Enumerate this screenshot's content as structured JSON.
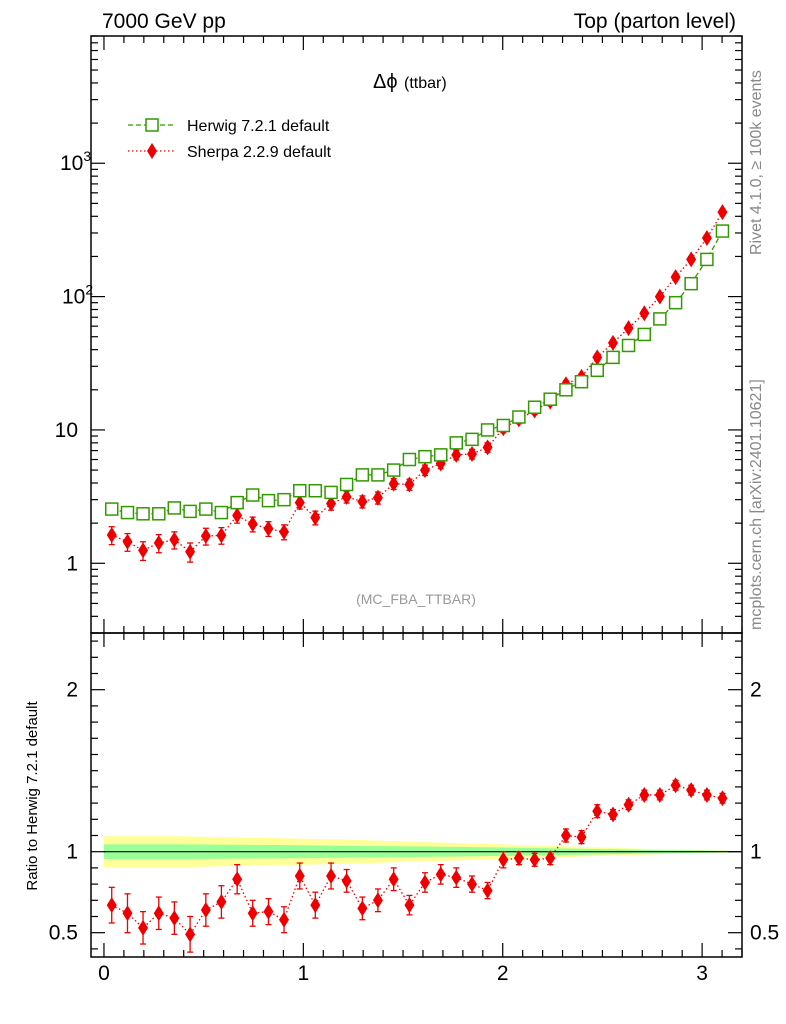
{
  "header": {
    "left": "7000 GeV pp",
    "right": "Top (parton level)"
  },
  "side_labels": {
    "rivet": "Rivet 4.1.0, ≥ 100k events",
    "mcplots": "mcplots.cern.ch [arXiv:2401.10621]"
  },
  "watermark": "(MC_FBA_TTBAR)",
  "colors": {
    "herwig": "#339900",
    "sherpa": "#ee0000",
    "band_inner": "#99ff99",
    "band_outer": "#ffff99"
  },
  "chart_data": [
    {
      "type": "scatter",
      "panel": "main",
      "title": "Δϕ (ttbar)",
      "title_main": "Δϕ",
      "title_sub": "(ttbar)",
      "xlabel": "",
      "ylabel": "",
      "yscale": "log",
      "xlim": [
        -0.065,
        3.2
      ],
      "ylim": [
        0.3,
        9000
      ],
      "y_ticks": [
        {
          "value": 1,
          "label": "1"
        },
        {
          "value": 10,
          "label": "10"
        },
        {
          "value": 100,
          "label": "10",
          "exp": "2"
        },
        {
          "value": 1000,
          "label": "10",
          "exp": "3"
        }
      ],
      "x": [
        0.039,
        0.118,
        0.196,
        0.275,
        0.353,
        0.432,
        0.511,
        0.589,
        0.668,
        0.746,
        0.825,
        0.903,
        0.982,
        1.06,
        1.139,
        1.217,
        1.296,
        1.374,
        1.453,
        1.532,
        1.61,
        1.689,
        1.767,
        1.846,
        1.924,
        2.003,
        2.081,
        2.16,
        2.238,
        2.317,
        2.395,
        2.474,
        2.553,
        2.631,
        2.71,
        2.788,
        2.867,
        2.945,
        3.024,
        3.102
      ],
      "series": [
        {
          "name": "Herwig 7.2.1 default",
          "style": "open-square-dashed",
          "values": [
            2.55,
            2.4,
            2.35,
            2.35,
            2.6,
            2.45,
            2.55,
            2.4,
            2.85,
            3.25,
            2.95,
            3.0,
            3.5,
            3.5,
            3.4,
            3.9,
            4.6,
            4.6,
            5.0,
            6.0,
            6.3,
            6.5,
            8.0,
            8.5,
            10.0,
            10.8,
            12.5,
            14.8,
            17.0,
            20.0,
            23.0,
            28.0,
            35.0,
            43.0,
            52.0,
            68.0,
            90.0,
            125.0,
            190.0,
            310.0
          ],
          "errors": [
            0.12,
            0.11,
            0.11,
            0.11,
            0.12,
            0.11,
            0.12,
            0.11,
            0.13,
            0.14,
            0.13,
            0.13,
            0.15,
            0.15,
            0.14,
            0.16,
            0.18,
            0.18,
            0.19,
            0.22,
            0.23,
            0.23,
            0.27,
            0.28,
            0.31,
            0.33,
            0.37,
            0.42,
            0.46,
            0.52,
            0.58,
            0.67,
            0.8,
            0.95,
            1.1,
            1.4,
            1.8,
            2.4,
            3.5,
            5.5
          ]
        },
        {
          "name": "Sherpa 2.2.9 default",
          "style": "filled-diamond-dotted",
          "values": [
            1.63,
            1.45,
            1.25,
            1.42,
            1.5,
            1.22,
            1.6,
            1.62,
            2.28,
            1.97,
            1.82,
            1.72,
            2.85,
            2.2,
            2.8,
            3.15,
            2.9,
            3.1,
            3.95,
            3.9,
            5.0,
            5.6,
            6.5,
            6.6,
            7.4,
            10.3,
            12.0,
            14.0,
            16.3,
            22.0,
            25.0,
            35.0,
            45.0,
            58.0,
            75.0,
            100.0,
            140.0,
            190.0,
            275.0,
            430.0
          ],
          "errors": [
            0.25,
            0.22,
            0.2,
            0.22,
            0.22,
            0.2,
            0.23,
            0.23,
            0.28,
            0.25,
            0.23,
            0.22,
            0.3,
            0.26,
            0.3,
            0.32,
            0.3,
            0.32,
            0.37,
            0.37,
            0.45,
            0.48,
            0.54,
            0.55,
            0.6,
            0.75,
            0.85,
            0.95,
            1.05,
            1.35,
            1.5,
            2.0,
            2.5,
            3.0,
            3.8,
            5.0,
            6.8,
            9.0,
            13.0,
            20.0
          ]
        }
      ]
    },
    {
      "type": "scatter",
      "panel": "ratio",
      "ylabel": "Ratio to Herwig 7.2.1 default",
      "xlabel": "",
      "xlim": [
        -0.065,
        3.2
      ],
      "ylim": [
        0.35,
        2.35
      ],
      "x_ticks": [
        {
          "value": 0,
          "label": "0"
        },
        {
          "value": 1,
          "label": "1"
        },
        {
          "value": 2,
          "label": "2"
        },
        {
          "value": 3,
          "label": "3"
        }
      ],
      "y_ticks": [
        {
          "value": 0.5,
          "label": "0.5"
        },
        {
          "value": 1,
          "label": "1"
        },
        {
          "value": 2,
          "label": "2"
        }
      ],
      "reference_line": 1.0,
      "band": {
        "x": [
          0.0,
          0.4,
          0.8,
          1.2,
          1.6,
          2.0,
          2.4,
          2.8,
          3.14
        ],
        "inner_halfwidth": [
          0.045,
          0.045,
          0.042,
          0.037,
          0.032,
          0.026,
          0.018,
          0.01,
          0.005
        ],
        "outer_halfwidth": [
          0.095,
          0.095,
          0.085,
          0.075,
          0.06,
          0.045,
          0.03,
          0.015,
          0.006
        ]
      },
      "series": [
        {
          "name": "Sherpa 2.2.9 default",
          "values": [
            0.67,
            0.62,
            0.53,
            0.62,
            0.59,
            0.49,
            0.64,
            0.69,
            0.83,
            0.62,
            0.63,
            0.58,
            0.85,
            0.67,
            0.85,
            0.82,
            0.65,
            0.7,
            0.83,
            0.67,
            0.81,
            0.86,
            0.84,
            0.8,
            0.76,
            0.95,
            0.96,
            0.95,
            0.96,
            1.1,
            1.09,
            1.25,
            1.23,
            1.29,
            1.35,
            1.35,
            1.41,
            1.38,
            1.35,
            1.33
          ],
          "errors": [
            0.11,
            0.12,
            0.1,
            0.1,
            0.1,
            0.11,
            0.1,
            0.1,
            0.09,
            0.08,
            0.08,
            0.08,
            0.08,
            0.08,
            0.08,
            0.07,
            0.07,
            0.07,
            0.07,
            0.06,
            0.06,
            0.06,
            0.06,
            0.05,
            0.05,
            0.05,
            0.04,
            0.04,
            0.04,
            0.04,
            0.04,
            0.04,
            0.03,
            0.03,
            0.03,
            0.03,
            0.03,
            0.03,
            0.03,
            0.03
          ]
        }
      ]
    }
  ]
}
